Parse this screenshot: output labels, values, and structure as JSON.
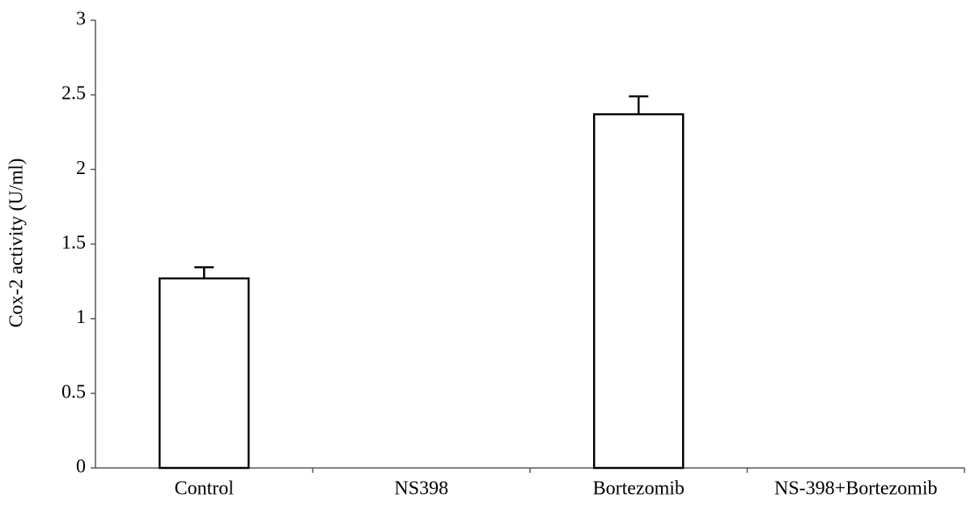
{
  "chart_data": {
    "type": "bar",
    "y_label": "Cox-2 activity (U/ml)",
    "categories": [
      "Control",
      "NS398",
      "Bortezomib",
      "NS-398+Bortezomib"
    ],
    "values": [
      1.27,
      0,
      2.37,
      0
    ],
    "errors": [
      0.075,
      0,
      0.12,
      0
    ],
    "color": "#ffffff",
    "edge_color": "#000000",
    "ylim": [
      0,
      3
    ],
    "yticks": [
      0,
      0.5,
      1,
      1.5,
      2,
      2.5,
      3
    ]
  }
}
